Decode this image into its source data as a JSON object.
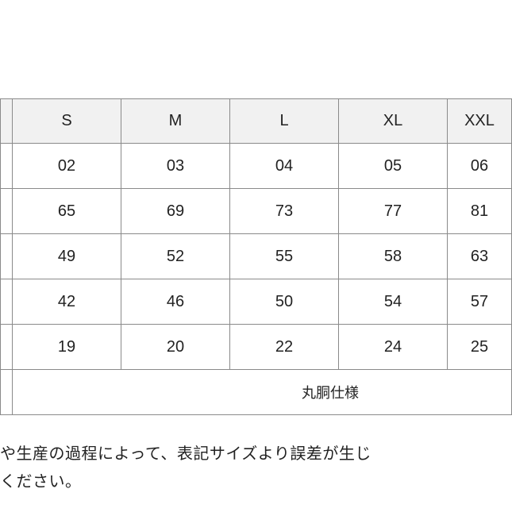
{
  "size_chart": {
    "headers": [
      "",
      "S",
      "M",
      "L",
      "XL",
      "XXL"
    ],
    "rows": [
      [
        "",
        "02",
        "03",
        "04",
        "05",
        "06"
      ],
      [
        "",
        "65",
        "69",
        "73",
        "77",
        "81"
      ],
      [
        "",
        "49",
        "52",
        "55",
        "58",
        "63"
      ],
      [
        "",
        "42",
        "46",
        "50",
        "54",
        "57"
      ],
      [
        "",
        "19",
        "20",
        "22",
        "24",
        "25"
      ]
    ],
    "note_label": "",
    "note": "丸胴仕様",
    "header_bg": "#f1f1f1",
    "border_color": "#8a8a8a"
  },
  "footer": {
    "line1": "や生産の過程によって、表記サイズより誤差が生じ",
    "line2": "ください。"
  }
}
